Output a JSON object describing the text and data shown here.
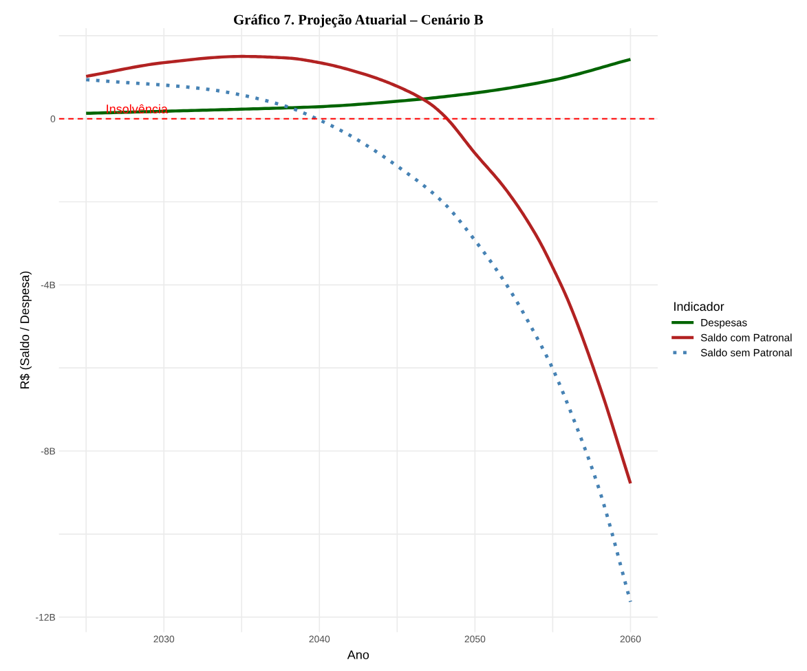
{
  "chart_data": {
    "type": "line",
    "title": "Gráfico 7. Projeção Atuarial – Cenário B",
    "xlabel": "Ano",
    "ylabel": "R$ (Saldo / Despesa)",
    "legend_title": "Indicador",
    "series": [
      {
        "name": "Despesas",
        "color": "#006400",
        "line_style": "solid",
        "x": [
          2025,
          2030,
          2035,
          2040,
          2045,
          2050,
          2055,
          2060
        ],
        "values": [
          0.13,
          0.18,
          0.23,
          0.29,
          0.42,
          0.62,
          0.93,
          1.43
        ]
      },
      {
        "name": "Saldo com Patronal",
        "color": "#b22222",
        "line_style": "solid",
        "x": [
          2025,
          2030,
          2035,
          2038,
          2040,
          2043,
          2045,
          2047,
          2048,
          2050,
          2052,
          2054,
          2055,
          2056,
          2058,
          2060
        ],
        "values": [
          1.02,
          1.35,
          1.5,
          1.46,
          1.35,
          1.06,
          0.78,
          0.39,
          0.08,
          -0.83,
          -1.71,
          -2.85,
          -3.58,
          -4.39,
          -6.42,
          -8.78
        ]
      },
      {
        "name": "Saldo sem Patronal",
        "color": "#4682b4",
        "line_style": "dotted",
        "x": [
          2025,
          2028,
          2030,
          2033,
          2035,
          2038,
          2040,
          2042,
          2045,
          2048,
          2050,
          2052,
          2054,
          2055,
          2056,
          2058,
          2060
        ],
        "values": [
          0.94,
          0.86,
          0.81,
          0.7,
          0.57,
          0.28,
          -0.03,
          -0.41,
          -1.14,
          -2.03,
          -2.93,
          -3.98,
          -5.28,
          -6.02,
          -6.91,
          -8.94,
          -11.63
        ]
      }
    ],
    "xlim": [
      2023.25,
      2061.75
    ],
    "ylim": [
      -12.36,
      2.18
    ],
    "xticks": [
      {
        "value": 2025,
        "label": null
      },
      2030,
      {
        "value": 2035,
        "label": null
      },
      2040,
      {
        "value": 2045,
        "label": null
      },
      2050,
      {
        "value": 2055,
        "label": null
      },
      2060
    ],
    "yticks": [
      {
        "value": -12,
        "label": "-12B"
      },
      {
        "value": -10,
        "label": null
      },
      {
        "value": -8,
        "label": "-8B"
      },
      {
        "value": -6,
        "label": null
      },
      {
        "value": -4,
        "label": "-4B"
      },
      {
        "value": -2,
        "label": null
      },
      {
        "value": 0,
        "label": "0"
      },
      {
        "value": 2,
        "label": null
      }
    ],
    "ref_lines": [
      {
        "axis": "y",
        "value": 0,
        "label": "Insolvência",
        "color": "#ff0000",
        "line_style": "dashed"
      }
    ],
    "grid": true,
    "legend": "right",
    "marker": "none"
  }
}
